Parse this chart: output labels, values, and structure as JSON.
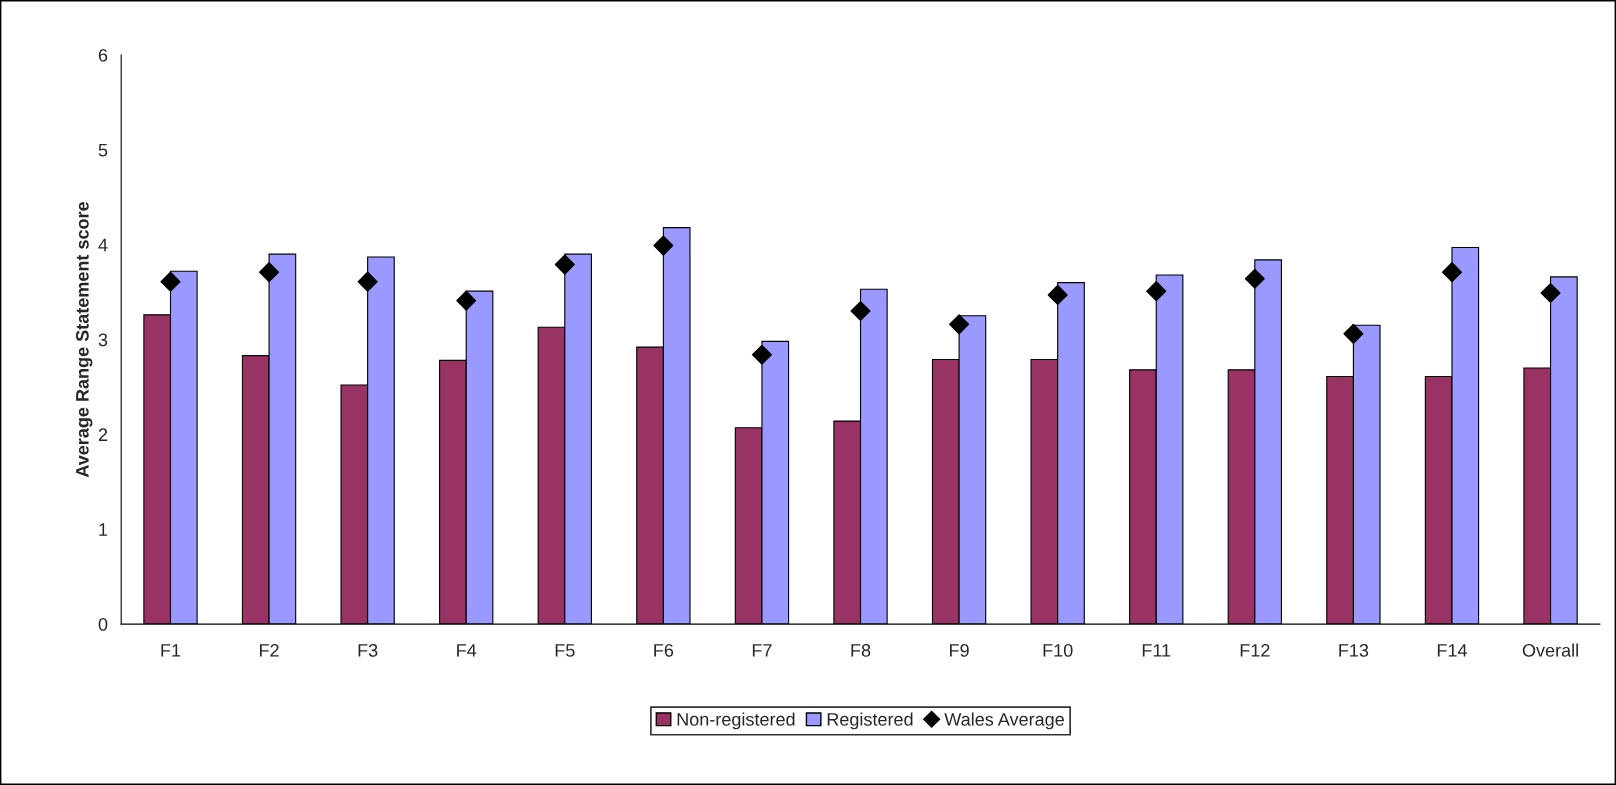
{
  "chart_data": {
    "type": "bar",
    "ylabel": "Average Range Statement score",
    "categories": [
      "F1",
      "F2",
      "F3",
      "F4",
      "F5",
      "F6",
      "F7",
      "F8",
      "F9",
      "F10",
      "F11",
      "F12",
      "F13",
      "F14",
      "Overall"
    ],
    "series": [
      {
        "name": "Non-registered",
        "color": "#993366",
        "values": [
          3.26,
          2.83,
          2.52,
          2.78,
          3.13,
          2.92,
          2.07,
          2.14,
          2.79,
          2.79,
          2.68,
          2.68,
          2.61,
          2.61,
          2.7
        ]
      },
      {
        "name": "Registered",
        "color": "#9999ff",
        "values": [
          3.72,
          3.9,
          3.87,
          3.51,
          3.9,
          4.18,
          2.98,
          3.53,
          3.25,
          3.6,
          3.68,
          3.84,
          3.15,
          3.97,
          3.66
        ]
      },
      {
        "name": "Wales Average",
        "type": "scatter",
        "color": "#000000",
        "values": [
          3.61,
          3.71,
          3.61,
          3.41,
          3.79,
          3.99,
          2.84,
          3.3,
          3.16,
          3.47,
          3.51,
          3.64,
          3.06,
          3.71,
          3.49
        ]
      }
    ],
    "ylim": [
      0,
      6
    ],
    "yticks": [
      0,
      1,
      2,
      3,
      4,
      5,
      6
    ],
    "grid": false,
    "legend": "bottom",
    "marker": "diamond"
  }
}
